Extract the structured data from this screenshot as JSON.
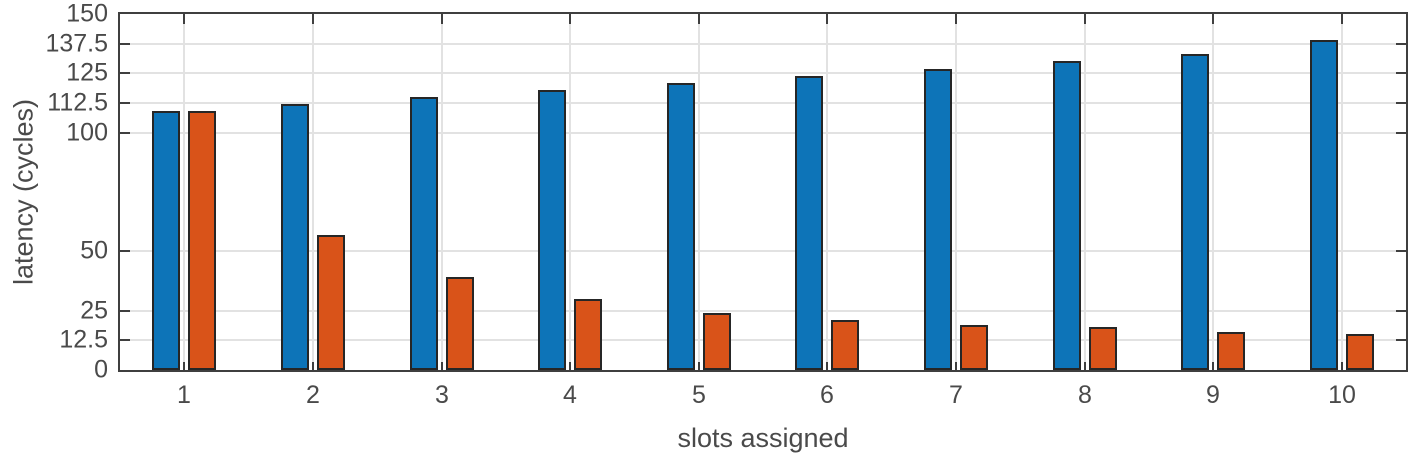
{
  "chart_data": {
    "type": "bar",
    "title": "",
    "xlabel": "slots assigned",
    "ylabel": "latency (cycles)",
    "categories": [
      "1",
      "2",
      "3",
      "4",
      "5",
      "6",
      "7",
      "8",
      "9",
      "10"
    ],
    "series": [
      {
        "name": "blue-series",
        "color": "#0d74b8",
        "values": [
          109,
          112,
          115,
          118,
          121,
          124,
          127,
          130,
          133,
          139
        ]
      },
      {
        "name": "orange-series",
        "color": "#d95319",
        "values": [
          109,
          57,
          39,
          30,
          24,
          21,
          19,
          18,
          16,
          15
        ]
      }
    ],
    "ylim": [
      0,
      150
    ],
    "yticks": [
      0,
      12.5,
      25,
      50,
      100,
      112.5,
      125,
      137.5,
      150
    ],
    "ytick_labels": [
      "0",
      "12.5",
      "25",
      "50",
      "100",
      "112.5",
      "125",
      "137.5",
      "150"
    ],
    "grid": true,
    "legend": "none",
    "style": {
      "background": "#ffffff",
      "bar_edge_color": "#262626",
      "axis_color": "#3f3f3f",
      "grid_color": "#e2e2e2",
      "text_color": "#4a4a4a"
    }
  }
}
